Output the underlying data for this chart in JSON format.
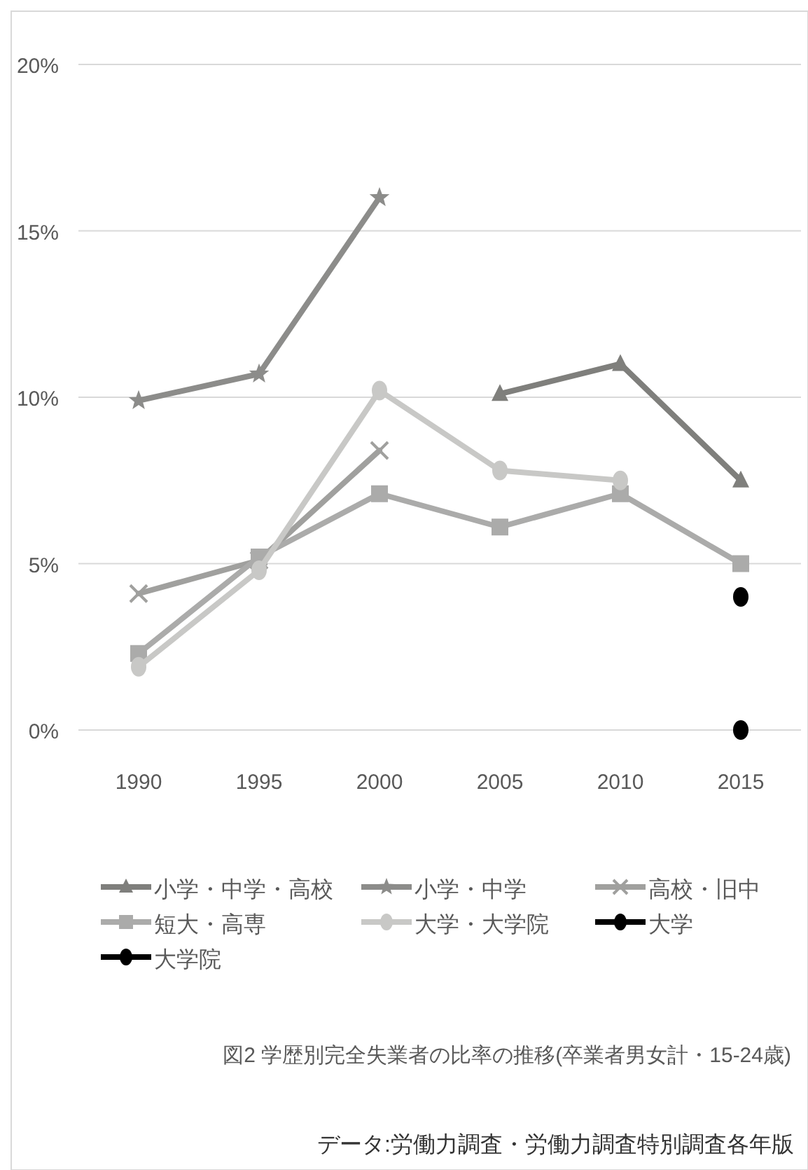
{
  "chart_data": {
    "type": "line",
    "title": "図2  学歴別完全失業者の比率の推移(卒業者男女計・15-24歳)",
    "categories": [
      "1990",
      "1995",
      "2000",
      "2005",
      "2010",
      "2015"
    ],
    "ylim": [
      0,
      20
    ],
    "yticks": [
      {
        "value": 0,
        "label": "0%"
      },
      {
        "value": 5,
        "label": "5%"
      },
      {
        "value": 10,
        "label": "10%"
      },
      {
        "value": 15,
        "label": "15%"
      },
      {
        "value": 20,
        "label": "20%"
      }
    ],
    "grid": "y",
    "legend": "bottom",
    "series": [
      {
        "name": "小学・中学・高校",
        "color": "#7f7f7c",
        "marker": "triangle",
        "values": [
          null,
          null,
          null,
          10.1,
          11.0,
          7.5
        ]
      },
      {
        "name": "小学・中学",
        "color": "#8c8c8a",
        "marker": "star",
        "values": [
          9.9,
          10.7,
          16.0,
          null,
          null,
          null
        ]
      },
      {
        "name": "高校・旧中",
        "color": "#a0a09e",
        "marker": "cross",
        "values": [
          4.1,
          5.1,
          8.4,
          null,
          null,
          null
        ]
      },
      {
        "name": "短大・高専",
        "color": "#ababaa",
        "marker": "square",
        "values": [
          2.3,
          5.2,
          7.1,
          6.1,
          7.1,
          5.0
        ]
      },
      {
        "name": "大学・大学院",
        "color": "#c8c8c6",
        "marker": "circle",
        "values": [
          1.9,
          4.8,
          10.2,
          7.8,
          7.5,
          null
        ]
      },
      {
        "name": "大学",
        "color": "#000000",
        "marker": "circle",
        "values": [
          null,
          null,
          null,
          null,
          null,
          4.0
        ]
      },
      {
        "name": "大学院",
        "color": "#000000",
        "marker": "circle",
        "values": [
          null,
          null,
          null,
          null,
          null,
          0.0
        ]
      }
    ],
    "annotations": [
      "データ:労働力調査・労働力調査特別調査各年版"
    ]
  }
}
